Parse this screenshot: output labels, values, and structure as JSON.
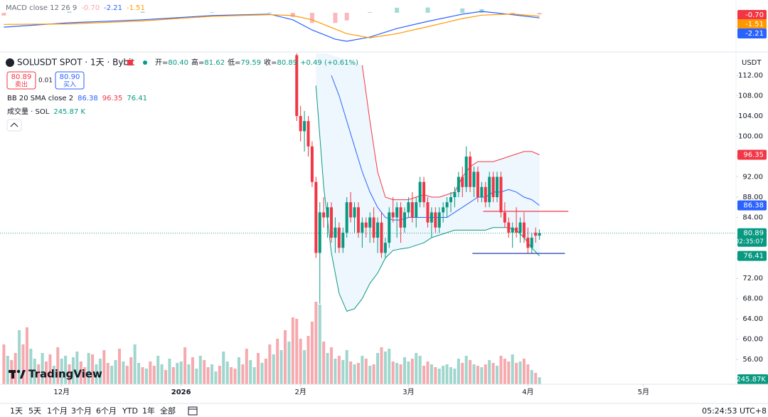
{
  "chart_data": [
    {
      "type": "macd",
      "title": "MACD close 12 26 9",
      "legend_values": [
        "-0.70",
        "-2.21",
        "-1.51"
      ],
      "x": [
        -15,
        2,
        21,
        39,
        54,
        60,
        65,
        71,
        74,
        80,
        87,
        95,
        104,
        109,
        117,
        124
      ],
      "series": [
        {
          "color": "#2962ff",
          "values": [
            -6.2,
            -4.3,
            -3,
            -1.2,
            -0.6,
            -3,
            -7.4,
            -11.4,
            -12.3,
            -10.5,
            -6.8,
            -3.7,
            -0.6,
            0.6,
            -0.8,
            -2.21
          ]
        },
        {
          "color": "#ff9800",
          "values": [
            -5,
            -4.8,
            -3.5,
            -1.5,
            -0.8,
            -1.2,
            -3,
            -7,
            -9,
            -10.8,
            -9,
            -6,
            -2.5,
            -1,
            -0.5,
            -1.51
          ]
        }
      ],
      "histogram": {
        "colors": {
          "up": "#a5dbd3",
          "down": "#f7b9bd"
        },
        "values": [
          -1.2,
          0.5,
          0.5,
          0.3,
          0.2,
          -1.8,
          -4.4,
          -4.4,
          -3.3,
          0.3,
          2.2,
          2.3,
          1.9,
          1.6,
          -0.3,
          -0.7
        ]
      },
      "ylim": [
        -16,
        4
      ]
    },
    {
      "type": "candlestick",
      "title": "SOLUSDT SPOT · 1天 · Bybit",
      "ohlc_legend": [
        {
          "label": "开=",
          "value": "80.40"
        },
        {
          "label": "高=",
          "value": "81.62"
        },
        {
          "label": "低=",
          "value": "79.59"
        },
        {
          "label": "收=",
          "value": "80.89"
        }
      ],
      "change": "+0.49 (+0.61%)",
      "trade": {
        "sell_price": "80.89",
        "sell": "卖出",
        "spread": "0.01",
        "buy_price": "80.90",
        "buy": "买入"
      },
      "up_color": "#089981",
      "down_color": "#f23645",
      "x": [
        61,
        62,
        63,
        64,
        65,
        66,
        67,
        68,
        69,
        70,
        71,
        72,
        73,
        74,
        75,
        76,
        77,
        78,
        79,
        80,
        81,
        82,
        83,
        84,
        85,
        86,
        87,
        88,
        89,
        90,
        91,
        92,
        93,
        94,
        95,
        96,
        97,
        98,
        99,
        100,
        101,
        102,
        103,
        104,
        105,
        106,
        107,
        108,
        109,
        110,
        111,
        112,
        113,
        114,
        115,
        116,
        117,
        118,
        119,
        120,
        121,
        122,
        123,
        124
      ],
      "open": [
        116,
        104,
        101,
        103,
        98,
        91,
        77,
        85,
        84,
        86,
        80,
        82,
        78,
        81,
        87,
        84,
        86,
        81,
        83,
        82,
        84,
        80,
        83,
        77,
        79,
        85,
        84,
        86,
        82,
        85,
        87,
        84,
        87,
        91,
        87,
        83,
        85,
        82,
        85,
        86,
        87,
        88,
        89,
        92,
        90,
        96,
        90,
        93,
        88,
        90,
        87,
        92,
        88,
        92,
        85,
        83,
        81,
        82,
        81,
        83,
        80,
        78,
        81,
        80.4
      ],
      "high": [
        117,
        106,
        105,
        104,
        99,
        92,
        87,
        88,
        87,
        87,
        84,
        83,
        82,
        88,
        89,
        87,
        87,
        84,
        84,
        85,
        86,
        84,
        85,
        80,
        86,
        88,
        87,
        87,
        86,
        88,
        89,
        88,
        92,
        92,
        88,
        86,
        86,
        86,
        87,
        88,
        89,
        90,
        93,
        94,
        98,
        97,
        94,
        94,
        91,
        91,
        93,
        93,
        93,
        93,
        87,
        84,
        83,
        86,
        84,
        85,
        82,
        81,
        82,
        81.62
      ],
      "low": [
        103,
        99,
        97,
        96,
        90,
        76,
        67,
        82,
        80,
        79,
        77,
        77,
        77,
        80,
        83,
        81,
        80,
        78,
        80,
        79,
        79,
        77,
        76,
        76,
        78,
        83,
        80,
        79,
        81,
        84,
        83,
        82,
        86,
        86,
        82,
        80,
        81,
        81,
        83,
        84,
        85,
        86,
        88,
        88,
        89,
        89,
        88,
        87,
        87,
        86,
        86,
        87,
        87,
        84,
        82,
        80,
        78,
        80,
        79,
        79,
        77,
        77,
        79,
        79.59
      ],
      "close": [
        104,
        101,
        103,
        98,
        91,
        77,
        85,
        84,
        86,
        80,
        82,
        78,
        81,
        87,
        84,
        86,
        81,
        83,
        82,
        84,
        80,
        83,
        77,
        79,
        85,
        84,
        86,
        82,
        85,
        87,
        84,
        87,
        91,
        87,
        83,
        85,
        82,
        85,
        86,
        87,
        88,
        89,
        92,
        90,
        96,
        90,
        93,
        88,
        90,
        87,
        92,
        88,
        92,
        85,
        83,
        81,
        82,
        81,
        83,
        80,
        78,
        80,
        80.4,
        80.89
      ],
      "xlim": [
        -16,
        175
      ],
      "xticks": [
        {
          "value": 0,
          "label": "12月"
        },
        {
          "value": 31,
          "label": "2026"
        },
        {
          "value": 62,
          "label": "2月"
        },
        {
          "value": 90,
          "label": "3月"
        },
        {
          "value": 121,
          "label": "4月"
        },
        {
          "value": 151,
          "label": "5月"
        }
      ],
      "ylim": [
        51.1,
        116.35
      ],
      "yticks": [
        {
          "value": 112,
          "label": "112.00"
        },
        {
          "value": 108,
          "label": "108.00"
        },
        {
          "value": 104,
          "label": "104.00"
        },
        {
          "value": 100,
          "label": "100.00"
        },
        {
          "value": 96,
          "label": "96.00"
        },
        {
          "value": 92,
          "label": "92.00"
        },
        {
          "value": 88,
          "label": "88.00"
        },
        {
          "value": 84,
          "label": "84.00"
        },
        {
          "value": 80,
          "label": "80.00"
        },
        {
          "value": 76,
          "label": "76.00"
        },
        {
          "value": 72,
          "label": "72.00"
        },
        {
          "value": 68,
          "label": "68.00"
        },
        {
          "value": 64,
          "label": "64.00"
        },
        {
          "value": 60,
          "label": "60.00"
        },
        {
          "value": 56,
          "label": "56.00"
        }
      ],
      "y_unit": "USDT",
      "last_price_countdown": "02:35:07",
      "indicator": {
        "title": "BB 20 SMA close 2",
        "fill": "rgba(33,150,243,0.08)",
        "series": [
          {
            "color": "#2962ff",
            "x": [
              70,
              72,
              74,
              76,
              78,
              80,
              82,
              84,
              86,
              88,
              90,
              92,
              94,
              96,
              98,
              100,
              102,
              104,
              106,
              108,
              110,
              112,
              114,
              116,
              118,
              120,
              122,
              124
            ],
            "values": [
              112,
              108,
              103,
              98,
              93,
              89,
              86,
              84,
              83.5,
              83.5,
              84,
              84,
              84,
              84,
              84,
              84,
              85,
              86,
              87,
              88,
              88,
              89,
              89,
              89.5,
              89,
              88,
              87.5,
              86.38
            ]
          },
          {
            "color": "#f23645",
            "x": [
              78,
              80,
              82,
              84,
              86,
              88,
              90,
              92,
              94,
              96,
              98,
              100,
              102,
              104,
              106,
              108,
              110,
              112,
              114,
              116,
              118,
              120,
              122,
              124
            ],
            "values": [
              114,
              103,
              93,
              88,
              87.5,
              87.5,
              87.5,
              88,
              88.5,
              88,
              88,
              88.5,
              89,
              92,
              94,
              95,
              95,
              95,
              95.5,
              96,
              96.5,
              97,
              97,
              96.35
            ]
          },
          {
            "color": "#089981",
            "x": [
              66,
              68,
              70,
              72,
              74,
              76,
              78,
              80,
              82,
              84,
              86,
              88,
              90,
              92,
              94,
              96,
              98,
              100,
              102,
              104,
              106,
              108,
              110,
              112,
              114,
              116,
              118,
              120,
              122,
              124
            ],
            "values": [
              110,
              90,
              77,
              69,
              65.5,
              66,
              68,
              71,
              73,
              76,
              77.5,
              77.8,
              78,
              78.5,
              79,
              80,
              80.5,
              81,
              81.5,
              81.5,
              81.5,
              81.5,
              81.5,
              82,
              82,
              82,
              81.5,
              80,
              78,
              76.41
            ]
          }
        ]
      },
      "volume": {
        "title": "成交量 · SOL",
        "legend_value": "245.87 K",
        "last_label": "245.87K",
        "colors": {
          "up": "#9fd6cd",
          "down": "#f6a9ae"
        },
        "x": [
          -15,
          -14,
          -13,
          -12,
          -11,
          -10,
          -9,
          -8,
          -7,
          -6,
          -5,
          -4,
          -3,
          -2,
          -1,
          0,
          1,
          2,
          3,
          4,
          5,
          6,
          7,
          8,
          9,
          10,
          11,
          12,
          13,
          14,
          15,
          16,
          17,
          18,
          19,
          20,
          21,
          22,
          23,
          24,
          25,
          26,
          27,
          28,
          29,
          30,
          31,
          32,
          33,
          34,
          35,
          36,
          37,
          38,
          39,
          40,
          41,
          42,
          43,
          44,
          45,
          46,
          47,
          48,
          49,
          50,
          51,
          52,
          53,
          54,
          55,
          56,
          57,
          58,
          59,
          60,
          61,
          62,
          63,
          64,
          65,
          66,
          67,
          68,
          69,
          70,
          71,
          72,
          73,
          74,
          75,
          76,
          77,
          78,
          79,
          80,
          81,
          82,
          83,
          84,
          85,
          86,
          87,
          88,
          89,
          90,
          91,
          92,
          93,
          94,
          95,
          96,
          97,
          98,
          99,
          100,
          101,
          102,
          103,
          104,
          105,
          106,
          107,
          108,
          109,
          110,
          111,
          112,
          113,
          114,
          115,
          116,
          117,
          118,
          119,
          120,
          121,
          122,
          123,
          124
        ],
        "values": [
          1400,
          1000,
          850,
          1100,
          1900,
          1400,
          2000,
          1250,
          900,
          700,
          1100,
          800,
          1050,
          650,
          1300,
          900,
          1000,
          700,
          950,
          1150,
          800,
          600,
          1100,
          1050,
          700,
          900,
          1200,
          750,
          650,
          850,
          1250,
          800,
          650,
          950,
          1400,
          750,
          600,
          550,
          800,
          650,
          1000,
          700,
          500,
          900,
          600,
          750,
          800,
          1300,
          700,
          950,
          550,
          1000,
          850,
          600,
          700,
          450,
          650,
          1150,
          800,
          600,
          550,
          950,
          700,
          1250,
          850,
          600,
          1100,
          750,
          900,
          1400,
          1050,
          1600,
          1200,
          1900,
          1500,
          2350,
          2300,
          1600,
          1200,
          1700,
          2200,
          2900,
          2800,
          1500,
          1100,
          1300,
          900,
          1000,
          850,
          1200,
          800,
          700,
          750,
          1000,
          900,
          650,
          700,
          1100,
          1300,
          1150,
          1250,
          800,
          750,
          700,
          950,
          800,
          900,
          1100,
          1000,
          650,
          800,
          700,
          600,
          550,
          650,
          700,
          600,
          550,
          900,
          750,
          1000,
          850,
          700,
          650,
          600,
          700,
          850,
          750,
          650,
          1000,
          900,
          800,
          1050,
          750,
          800,
          900,
          700,
          500,
          400,
          245.87
        ],
        "up": [
          0,
          1,
          0,
          0,
          1,
          0,
          0,
          1,
          1,
          0,
          1,
          0,
          0,
          1,
          0,
          1,
          1,
          0,
          1,
          1,
          0,
          0,
          1,
          0,
          1,
          1,
          0,
          0,
          1,
          1,
          0,
          1,
          0,
          0,
          1,
          1,
          0,
          1,
          0,
          0,
          1,
          1,
          0,
          1,
          0,
          1,
          1,
          0,
          1,
          0,
          1,
          1,
          0,
          0,
          1,
          1,
          0,
          1,
          1,
          0,
          0,
          1,
          0,
          0,
          1,
          1,
          0,
          1,
          0,
          0,
          1,
          0,
          1,
          0,
          1,
          0,
          0,
          0,
          1,
          0,
          0,
          0,
          1,
          0,
          1,
          0,
          1,
          0,
          1,
          1,
          0,
          1,
          0,
          1,
          0,
          1,
          0,
          1,
          0,
          1,
          1,
          0,
          1,
          0,
          1,
          1,
          0,
          1,
          1,
          0,
          0,
          1,
          0,
          1,
          1,
          1,
          1,
          1,
          1,
          0,
          1,
          0,
          1,
          0,
          1,
          0,
          1,
          0,
          1,
          0,
          0,
          0,
          1,
          0,
          1,
          0,
          0,
          1,
          0,
          1
        ]
      },
      "drawings": [
        {
          "color": "#f23645",
          "value": 85.2,
          "x": [
            109.4,
            131.5
          ]
        },
        {
          "color": "#1e3fa8",
          "value": 76.9,
          "x": [
            106.6,
            130.6
          ]
        }
      ]
    }
  ],
  "brand": "TradingView",
  "toolbar": {
    "ranges": [
      "1天",
      "5天",
      "1个月",
      "3个月",
      "6个月",
      "YTD",
      "1年",
      "全部"
    ],
    "clock": "05:24:53 UTC+8"
  }
}
